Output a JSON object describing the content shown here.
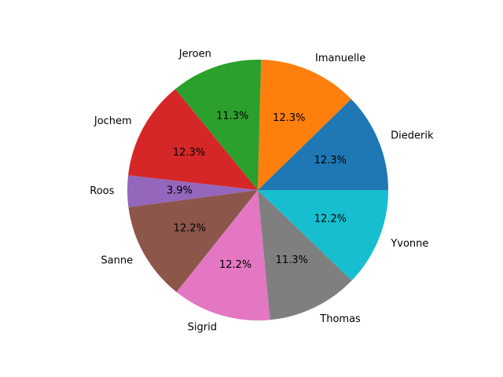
{
  "chart_data": {
    "type": "pie",
    "start_angle": 0,
    "direction": "counterclockwise",
    "slices": [
      {
        "label": "Diederik",
        "value": 12.3,
        "pct_label": "12.3%",
        "color": "#1f77b4"
      },
      {
        "label": "Imanuelle",
        "value": 12.3,
        "pct_label": "12.3%",
        "color": "#ff7f0e"
      },
      {
        "label": "Jeroen",
        "value": 11.3,
        "pct_label": "11.3%",
        "color": "#2ca02c"
      },
      {
        "label": "Jochem",
        "value": 12.3,
        "pct_label": "12.3%",
        "color": "#d62728"
      },
      {
        "label": "Roos",
        "value": 3.9,
        "pct_label": "3.9%",
        "color": "#9467bd"
      },
      {
        "label": "Sanne",
        "value": 12.2,
        "pct_label": "12.2%",
        "color": "#8c564b"
      },
      {
        "label": "Sigrid",
        "value": 12.2,
        "pct_label": "12.2%",
        "color": "#e377c2"
      },
      {
        "label": "Thomas",
        "value": 11.3,
        "pct_label": "11.3%",
        "color": "#7f7f7f"
      },
      {
        "label": "Yvonne",
        "value": 12.2,
        "pct_label": "12.2%",
        "color": "#17becf"
      }
    ]
  }
}
